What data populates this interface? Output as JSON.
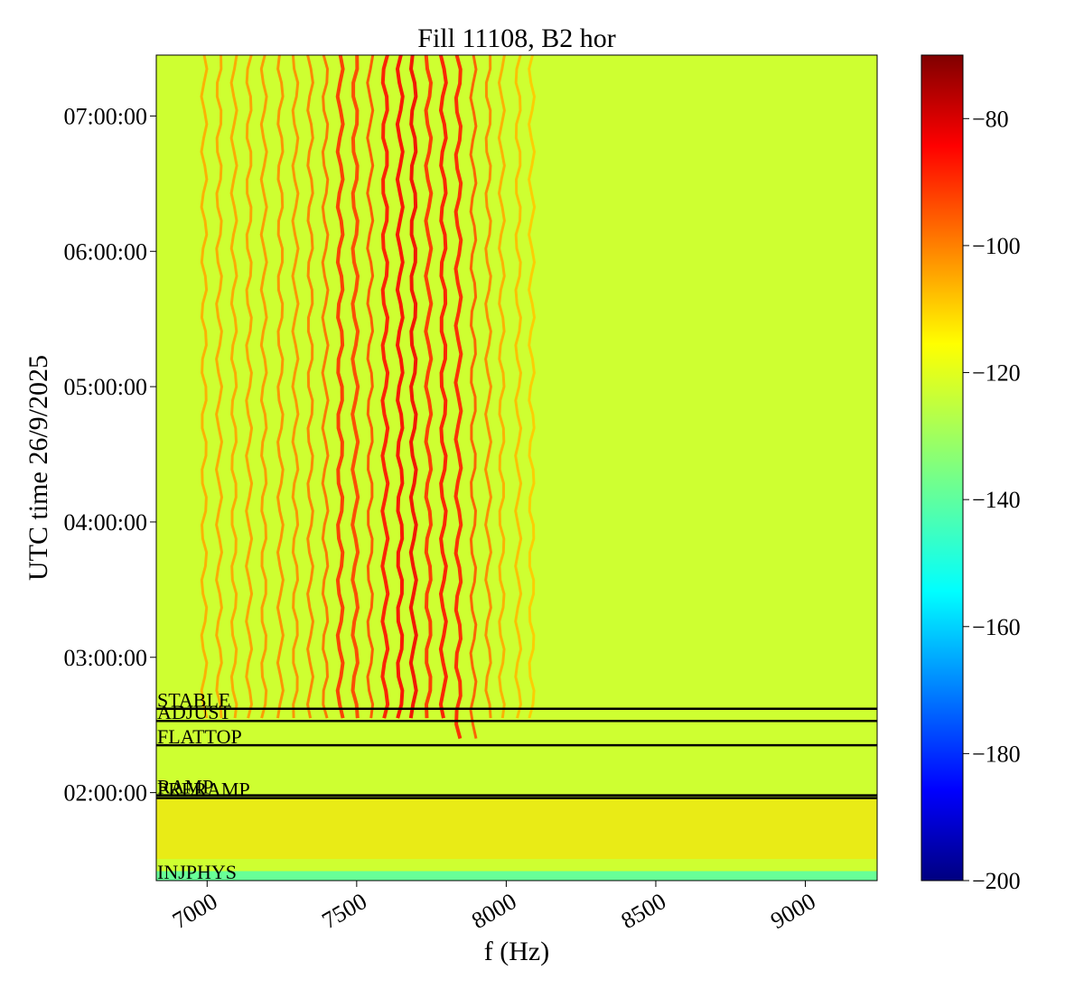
{
  "chart_data": {
    "type": "heatmap",
    "title": "Fill 11108, B2 hor",
    "xlabel": "f (Hz)",
    "ylabel": "UTC time 26/9/2025",
    "xlim": [
      6830,
      9240
    ],
    "ylim_hours": [
      1.35,
      7.45
    ],
    "x_ticks": [
      {
        "value": 7000,
        "label": "7000"
      },
      {
        "value": 7500,
        "label": "7500"
      },
      {
        "value": 8000,
        "label": "8000"
      },
      {
        "value": 8500,
        "label": "8500"
      },
      {
        "value": 9000,
        "label": "9000"
      }
    ],
    "y_ticks": [
      {
        "value": 2,
        "label": "02:00:00"
      },
      {
        "value": 3,
        "label": "03:00:00"
      },
      {
        "value": 4,
        "label": "04:00:00"
      },
      {
        "value": 5,
        "label": "05:00:00"
      },
      {
        "value": 6,
        "label": "06:00:00"
      },
      {
        "value": 7,
        "label": "07:00:00"
      }
    ],
    "colorbar": {
      "colormap": "jet",
      "range": [
        -200,
        -70
      ],
      "ticks": [
        {
          "value": -80,
          "label": "−80"
        },
        {
          "value": -100,
          "label": "−100"
        },
        {
          "value": -120,
          "label": "−120"
        },
        {
          "value": -140,
          "label": "−140"
        },
        {
          "value": -160,
          "label": "−160"
        },
        {
          "value": -180,
          "label": "−180"
        },
        {
          "value": -200,
          "label": "−200"
        }
      ]
    },
    "background_level": -125,
    "beam_modes": [
      {
        "label": "STABLE",
        "time": 2.62
      },
      {
        "label": "ADJUST",
        "time": 2.53
      },
      {
        "label": "FLATTOP",
        "time": 2.35
      },
      {
        "label": "RAMP",
        "time": 1.98
      },
      {
        "label": "PRERAMP",
        "time": 1.96
      },
      {
        "label": "INJPHYS",
        "time": 1.35
      }
    ],
    "lines": [
      {
        "f": 6990,
        "level": -108,
        "t_start": 2.55
      },
      {
        "f": 7040,
        "level": -107,
        "t_start": 2.55
      },
      {
        "f": 7090,
        "level": -107,
        "t_start": 2.55
      },
      {
        "f": 7140,
        "level": -106,
        "t_start": 2.55
      },
      {
        "f": 7190,
        "level": -105,
        "t_start": 2.55
      },
      {
        "f": 7245,
        "level": -104,
        "t_start": 2.55
      },
      {
        "f": 7295,
        "level": -104,
        "t_start": 2.55
      },
      {
        "f": 7345,
        "level": -102,
        "t_start": 2.55
      },
      {
        "f": 7395,
        "level": -100,
        "t_start": 2.55
      },
      {
        "f": 7445,
        "level": -92,
        "t_start": 2.55
      },
      {
        "f": 7495,
        "level": -94,
        "t_start": 2.55
      },
      {
        "f": 7545,
        "level": -96,
        "t_start": 2.55
      },
      {
        "f": 7595,
        "level": -88,
        "t_start": 2.55
      },
      {
        "f": 7645,
        "level": -86,
        "t_start": 2.55
      },
      {
        "f": 7690,
        "level": -85,
        "t_start": 2.55
      },
      {
        "f": 7740,
        "level": -92,
        "t_start": 2.55
      },
      {
        "f": 7790,
        "level": -88,
        "t_start": 2.55
      },
      {
        "f": 7840,
        "level": -90,
        "t_start": 2.4
      },
      {
        "f": 7890,
        "level": -97,
        "t_start": 2.4
      },
      {
        "f": 7940,
        "level": -103,
        "t_start": 2.55
      },
      {
        "f": 7985,
        "level": -108,
        "t_start": 2.55
      },
      {
        "f": 8040,
        "level": -110,
        "t_start": 2.55
      },
      {
        "f": 8085,
        "level": -112,
        "t_start": 2.55
      }
    ]
  }
}
